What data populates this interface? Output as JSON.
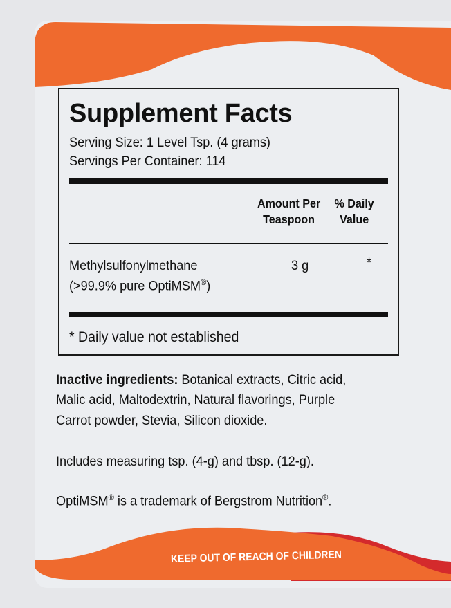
{
  "colors": {
    "orange": "#ef6a2e",
    "red": "#d42a2c",
    "background": "#eceef1"
  },
  "facts": {
    "title": "Supplement Facts",
    "serving_size": "Serving Size:  1 Level Tsp. (4 grams)",
    "servings_per_container": "Servings Per Container:  114",
    "headers": {
      "amount_line1": "Amount Per",
      "amount_line2": "Teaspoon",
      "dv_line1": "% Daily",
      "dv_line2": "Value"
    },
    "ingredient": {
      "name": "Methylsulfonylmethane",
      "detail": "(>99.9% pure OptiMSM",
      "detail_reg": "®",
      "detail_close": ")",
      "amount": "3 g",
      "dv": "*"
    },
    "footnote": "* Daily value not established"
  },
  "inactive": {
    "label": "Inactive ingredients:",
    "line1": " Botanical extracts, Citric acid,",
    "line2": "Malic acid, Maltodextrin, Natural flavorings, Purple",
    "line3": "Carrot powder, Stevia, Silicon dioxide."
  },
  "includes": "Includes measuring tsp. (4-g) and tbsp. (12-g).",
  "trademark": {
    "part1": "OptiMSM",
    "reg": "®",
    "part2": " is a trademark of Bergstrom Nutrition",
    "reg2": "®",
    "end": "."
  },
  "warning": "KEEP OUT OF REACH OF CHILDREN"
}
